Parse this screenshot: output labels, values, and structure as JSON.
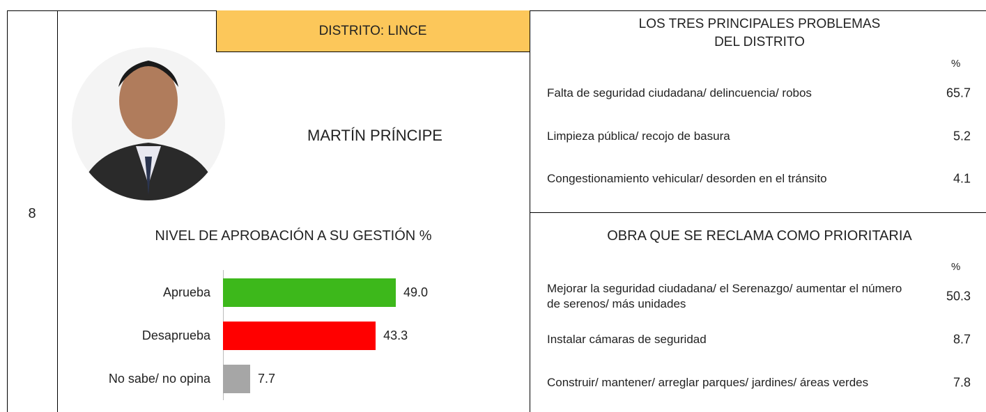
{
  "row_number": "8",
  "header": {
    "district": "DISTRITO:  LINCE",
    "mayor": "MARTÍN PRÍNCIPE"
  },
  "chart_data": {
    "type": "bar",
    "orientation": "horizontal",
    "title": "NIVEL DE APROBACIÓN A SU GESTIÓN %",
    "categories": [
      "Aprueba",
      "Desaprueba",
      "No sabe/ no opina"
    ],
    "values": [
      49.0,
      43.3,
      7.7
    ],
    "value_labels": [
      "49.0",
      "43.3",
      "7.7"
    ],
    "colors": [
      "#3db81b",
      "#ff0000",
      "#a6a6a6"
    ]
  },
  "problems": {
    "title": [
      "LOS TRES PRINCIPALES PROBLEMAS",
      "DEL DISTRITO"
    ],
    "unit": "%",
    "rows": [
      [
        "Falta de seguridad ciudadana/ delincuencia/ robos",
        "65.7"
      ],
      [
        "Limpieza pública/ recojo de basura",
        "5.2"
      ],
      [
        "Congestionamiento vehicular/ desorden en el tránsito",
        "4.1"
      ]
    ]
  },
  "works": {
    "title": "OBRA QUE SE RECLAMA COMO PRIORITARIA",
    "unit": "%",
    "rows": [
      [
        "Mejorar la seguridad ciudadana/ el Serenazgo/ aumentar el número de serenos/ más unidades",
        "50.3"
      ],
      [
        "Instalar cámaras de seguridad",
        "8.7"
      ],
      [
        "Construir/ mantener/ arreglar parques/ jardines/ áreas verdes",
        "7.8"
      ]
    ]
  }
}
